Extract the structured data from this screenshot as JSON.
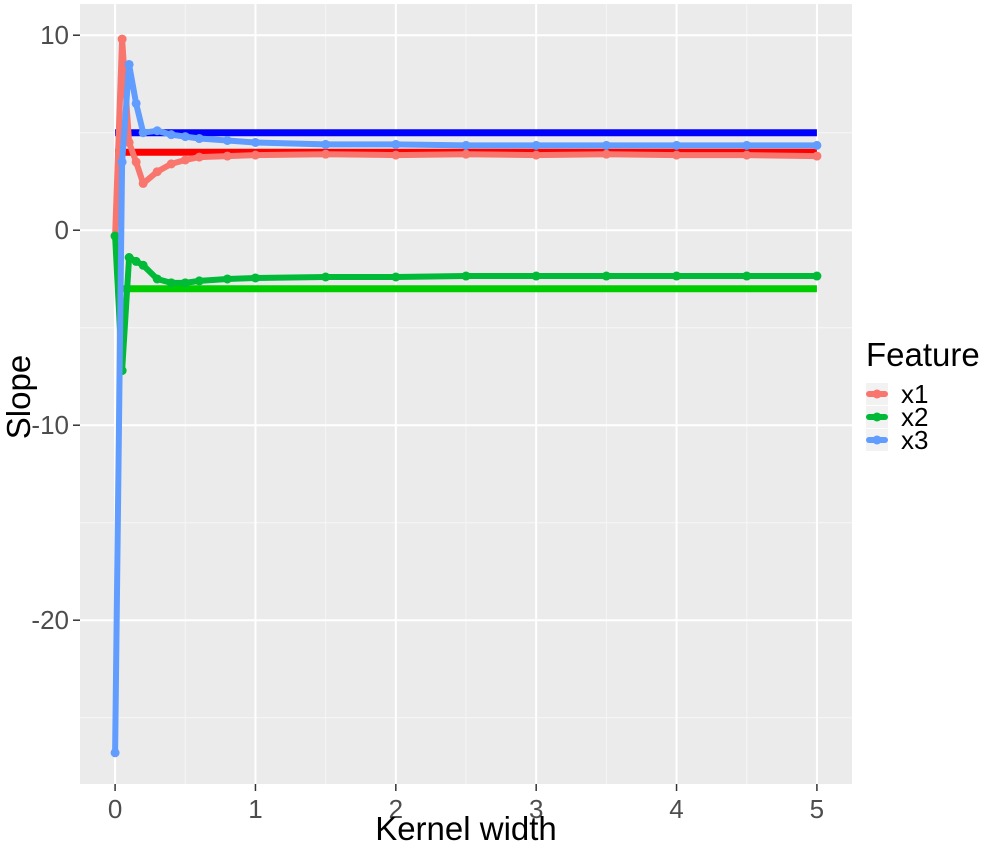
{
  "chart_data": {
    "type": "line",
    "xlabel": "Kernel width",
    "ylabel": "Slope",
    "xlim": [
      -0.25,
      5.25
    ],
    "ylim": [
      -28.4,
      11.6
    ],
    "x_ticks": [
      0,
      1,
      2,
      3,
      4,
      5
    ],
    "x_tick_labels": [
      "0",
      "1",
      "2",
      "3",
      "4",
      "5"
    ],
    "y_ticks": [
      -20,
      -10,
      0,
      10
    ],
    "y_tick_labels": [
      "-20",
      "-10",
      "0",
      "10"
    ],
    "grid": true,
    "legend": {
      "title": "Feature",
      "position": "right",
      "entries": [
        {
          "label": "x1",
          "color": "#F8766D"
        },
        {
          "label": "x2",
          "color": "#00BA38"
        },
        {
          "label": "x3",
          "color": "#619CFF"
        }
      ]
    },
    "series": [
      {
        "name": "x1",
        "color": "#F8766D",
        "x": [
          0.0,
          0.05,
          0.1,
          0.15,
          0.2,
          0.3,
          0.4,
          0.5,
          0.6,
          0.8,
          1.0,
          1.5,
          2.0,
          2.5,
          3.0,
          3.5,
          4.0,
          4.5,
          5.0
        ],
        "y": [
          -0.3,
          9.8,
          4.5,
          3.5,
          2.4,
          3.0,
          3.4,
          3.6,
          3.75,
          3.8,
          3.85,
          3.9,
          3.85,
          3.9,
          3.85,
          3.9,
          3.85,
          3.85,
          3.8
        ]
      },
      {
        "name": "x2",
        "color": "#00BA38",
        "x": [
          0.0,
          0.05,
          0.1,
          0.15,
          0.2,
          0.3,
          0.4,
          0.5,
          0.6,
          0.8,
          1.0,
          1.5,
          2.0,
          2.5,
          3.0,
          3.5,
          4.0,
          4.5,
          5.0
        ],
        "y": [
          -0.3,
          -7.2,
          -1.4,
          -1.6,
          -1.8,
          -2.5,
          -2.7,
          -2.7,
          -2.6,
          -2.5,
          -2.45,
          -2.4,
          -2.4,
          -2.35,
          -2.35,
          -2.35,
          -2.35,
          -2.35,
          -2.35
        ]
      },
      {
        "name": "x3",
        "color": "#619CFF",
        "x": [
          0.0,
          0.05,
          0.1,
          0.15,
          0.2,
          0.3,
          0.4,
          0.5,
          0.6,
          0.8,
          1.0,
          1.5,
          2.0,
          2.5,
          3.0,
          3.5,
          4.0,
          4.5,
          5.0
        ],
        "y": [
          -26.8,
          3.5,
          8.5,
          6.5,
          5.0,
          5.1,
          4.9,
          4.8,
          4.7,
          4.6,
          4.5,
          4.4,
          4.4,
          4.35,
          4.35,
          4.35,
          4.35,
          4.35,
          4.35
        ]
      }
    ],
    "reference_lines": [
      {
        "feature": "x1",
        "value": 4,
        "color": "#FF0000",
        "x_range": [
          0,
          5
        ]
      },
      {
        "feature": "x2",
        "value": -3,
        "color": "#00CD00",
        "x_range": [
          0,
          5
        ]
      },
      {
        "feature": "x3",
        "value": 5,
        "color": "#0000FF",
        "x_range": [
          0,
          5
        ]
      }
    ]
  }
}
